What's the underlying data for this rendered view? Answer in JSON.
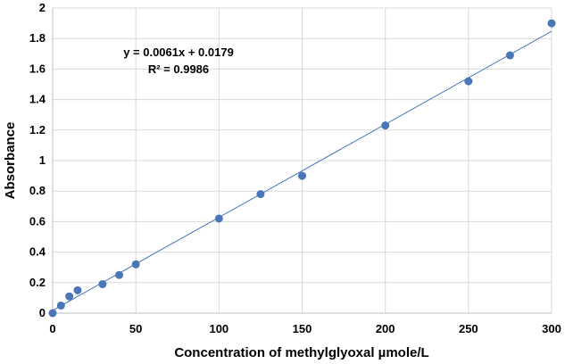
{
  "chart_data": {
    "type": "scatter",
    "title": "",
    "xlabel": "Concentration of methylglyoxal  µmole/L",
    "ylabel": "Absorbance",
    "xlim": [
      0,
      300
    ],
    "ylim": [
      0,
      2
    ],
    "x_ticks": [
      "0",
      "50",
      "100",
      "150",
      "200",
      "250",
      "300"
    ],
    "y_ticks": [
      "0",
      "0.2",
      "0.4",
      "0.6",
      "0.8",
      "1",
      "1.2",
      "1.4",
      "1.6",
      "1.8",
      "2"
    ],
    "grid": true,
    "series": [
      {
        "name": "Absorbance",
        "color": "#4a76b8",
        "x": [
          0,
          5,
          10,
          15,
          30,
          40,
          50,
          100,
          125,
          150,
          200,
          250,
          275,
          300
        ],
        "y": [
          0.0,
          0.05,
          0.11,
          0.15,
          0.19,
          0.25,
          0.32,
          0.62,
          0.78,
          0.9,
          1.23,
          1.52,
          1.69,
          1.9
        ]
      }
    ],
    "trendline": {
      "slope": 0.0061,
      "intercept": 0.0179,
      "color": "#4a76b8"
    },
    "annotations": {
      "equation": "y = 0.0061x + 0.0179",
      "r_squared": "R² = 0.9986"
    }
  }
}
